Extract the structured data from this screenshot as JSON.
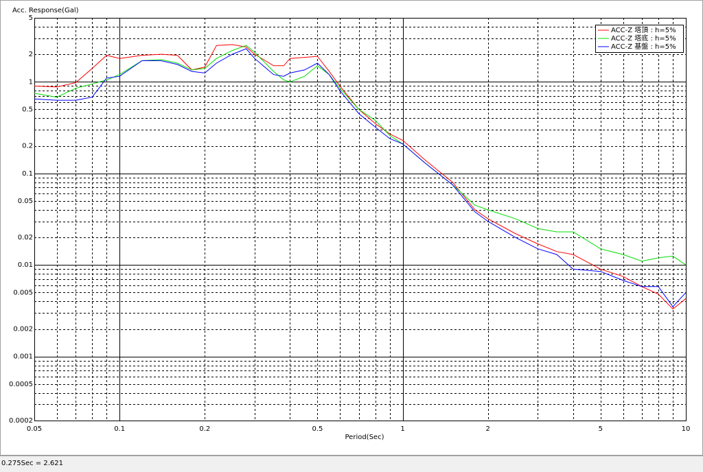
{
  "chart_data": {
    "type": "line",
    "y_label": "Acc. Response(Gal)",
    "x_label": "Period(Sec)",
    "log_x": true,
    "log_y": true,
    "grid": true,
    "legend": "top-right",
    "xlim": [
      0.05,
      10
    ],
    "ylim": [
      0.0002,
      5
    ],
    "xticks": [
      0.05,
      0.1,
      0.2,
      0.5,
      1,
      2,
      5,
      10
    ],
    "yticks": [
      5,
      2,
      1,
      0.5,
      0.2,
      0.1,
      0.05,
      0.02,
      0.01,
      0.005,
      0.002,
      0.001,
      0.0005,
      0.0002
    ],
    "xgrid": [
      0.06,
      0.07,
      0.08,
      0.09,
      0.1,
      0.2,
      0.3,
      0.4,
      0.5,
      0.6,
      0.7,
      0.8,
      0.9,
      1,
      2,
      3,
      4,
      5,
      6,
      7,
      8,
      9
    ],
    "ygrid": [
      4,
      3,
      2,
      1,
      0.9,
      0.8,
      0.7,
      0.6,
      0.5,
      0.4,
      0.3,
      0.2,
      0.1,
      0.09,
      0.08,
      0.07,
      0.06,
      0.05,
      0.04,
      0.03,
      0.02,
      0.01,
      0.009,
      0.008,
      0.007,
      0.006,
      0.005,
      0.004,
      0.003,
      0.002,
      0.001,
      0.0009,
      0.0008,
      0.0007,
      0.0006,
      0.0005,
      0.0004,
      0.0003
    ],
    "x": [
      0.05,
      0.06,
      0.07,
      0.08,
      0.09,
      0.1,
      0.12,
      0.14,
      0.16,
      0.18,
      0.2,
      0.22,
      0.25,
      0.28,
      0.3,
      0.35,
      0.38,
      0.4,
      0.45,
      0.5,
      0.55,
      0.6,
      0.7,
      0.8,
      0.9,
      1.0,
      1.2,
      1.5,
      1.8,
      2.0,
      2.5,
      3.0,
      3.5,
      4.0,
      5.0,
      6.0,
      7.0,
      8.0,
      9.0,
      10.0
    ],
    "series": [
      {
        "name": "ACC-Z 塔頂 : h=5%",
        "color": "#ff0000",
        "values": [
          0.9,
          0.88,
          0.98,
          1.4,
          1.95,
          1.8,
          1.95,
          2.0,
          1.95,
          1.35,
          1.45,
          2.5,
          2.55,
          2.4,
          2.0,
          1.5,
          1.5,
          1.8,
          1.85,
          1.9,
          1.3,
          0.9,
          0.5,
          0.35,
          0.27,
          0.23,
          0.14,
          0.08,
          0.04,
          0.032,
          0.022,
          0.017,
          0.014,
          0.013,
          0.009,
          0.0075,
          0.0058,
          0.0048,
          0.0033,
          0.0043
        ]
      },
      {
        "name": "ACC-Z 塔底 : h=5%",
        "color": "#00dd00",
        "values": [
          0.75,
          0.68,
          0.85,
          0.95,
          1.05,
          1.2,
          1.7,
          1.75,
          1.6,
          1.35,
          1.4,
          1.8,
          2.2,
          2.5,
          2.1,
          1.3,
          1.05,
          1.0,
          1.15,
          1.5,
          1.2,
          0.85,
          0.5,
          0.38,
          0.26,
          0.21,
          0.13,
          0.075,
          0.045,
          0.04,
          0.032,
          0.025,
          0.023,
          0.023,
          0.015,
          0.013,
          0.011,
          0.012,
          0.0125,
          0.01
        ]
      },
      {
        "name": "ACC-Z 基盤 : h=5%",
        "color": "#0000ff",
        "values": [
          0.65,
          0.63,
          0.63,
          0.68,
          1.1,
          1.15,
          1.7,
          1.7,
          1.55,
          1.3,
          1.25,
          1.6,
          2.0,
          2.3,
          1.8,
          1.2,
          1.15,
          1.25,
          1.35,
          1.6,
          1.2,
          0.8,
          0.45,
          0.32,
          0.24,
          0.21,
          0.13,
          0.075,
          0.038,
          0.03,
          0.02,
          0.015,
          0.013,
          0.009,
          0.0085,
          0.0068,
          0.0058,
          0.0058,
          0.0035,
          0.005
        ]
      }
    ]
  },
  "status_bar": {
    "text": "0.275Sec = 2.621"
  }
}
